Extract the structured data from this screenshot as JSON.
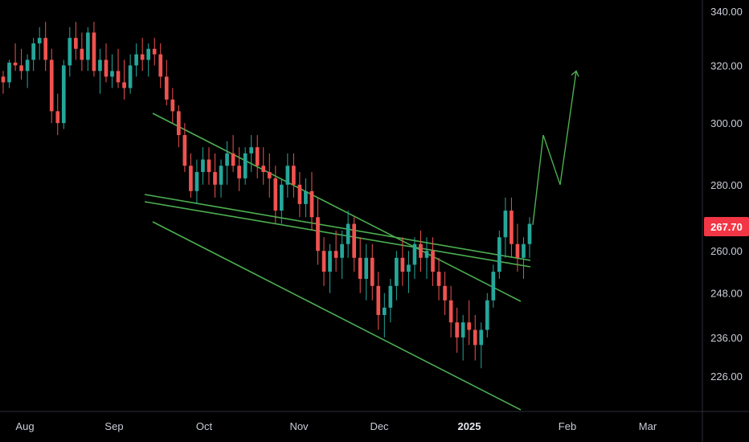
{
  "chart_data": {
    "type": "candlestick",
    "title": "",
    "price_axis": {
      "ticks": [
        "340.00",
        "320.00",
        "300.00",
        "280.00",
        "260.00",
        "248.00",
        "236.00",
        "226.00"
      ],
      "current_price_label": "267.70",
      "scale": "log"
    },
    "time_axis": {
      "ticks": [
        {
          "label": "Aug",
          "bold": false
        },
        {
          "label": "Sep",
          "bold": false
        },
        {
          "label": "Oct",
          "bold": false
        },
        {
          "label": "Nov",
          "bold": false
        },
        {
          "label": "Dec",
          "bold": false
        },
        {
          "label": "2025",
          "bold": true
        },
        {
          "label": "Feb",
          "bold": false
        },
        {
          "label": "Mar",
          "bold": false
        }
      ]
    },
    "colors": {
      "background": "#000000",
      "up": "#26a69a",
      "down": "#ef5350",
      "trendline": "#4caf50",
      "projection": "#4caf50",
      "price_badge": "#f23645",
      "axis_text": "#c9cdd6",
      "axis_line": "#2a2e39"
    },
    "candles_ohlc": [
      [
        316,
        318,
        310,
        314
      ],
      [
        314,
        322,
        312,
        321
      ],
      [
        321,
        328,
        318,
        320
      ],
      [
        320,
        326,
        315,
        318
      ],
      [
        318,
        324,
        312,
        322
      ],
      [
        322,
        330,
        318,
        328
      ],
      [
        328,
        334,
        322,
        330
      ],
      [
        330,
        336,
        318,
        322
      ],
      [
        322,
        326,
        300,
        304
      ],
      [
        304,
        310,
        296,
        300
      ],
      [
        300,
        322,
        298,
        320
      ],
      [
        320,
        334,
        316,
        330
      ],
      [
        330,
        336,
        322,
        326
      ],
      [
        326,
        332,
        318,
        322
      ],
      [
        322,
        334,
        318,
        332
      ],
      [
        332,
        336,
        316,
        318
      ],
      [
        318,
        326,
        310,
        322
      ],
      [
        322,
        328,
        314,
        316
      ],
      [
        316,
        324,
        312,
        318
      ],
      [
        318,
        326,
        312,
        314
      ],
      [
        314,
        322,
        308,
        312
      ],
      [
        312,
        324,
        310,
        320
      ],
      [
        320,
        328,
        316,
        324
      ],
      [
        324,
        330,
        318,
        322
      ],
      [
        322,
        328,
        316,
        326
      ],
      [
        326,
        330,
        320,
        324
      ],
      [
        324,
        328,
        312,
        316
      ],
      [
        316,
        322,
        306,
        308
      ],
      [
        308,
        312,
        300,
        304
      ],
      [
        304,
        306,
        292,
        296
      ],
      [
        296,
        300,
        284,
        286
      ],
      [
        286,
        290,
        276,
        278
      ],
      [
        278,
        288,
        274,
        284
      ],
      [
        284,
        292,
        280,
        288
      ],
      [
        288,
        292,
        280,
        284
      ],
      [
        284,
        290,
        276,
        280
      ],
      [
        280,
        288,
        276,
        286
      ],
      [
        286,
        294,
        280,
        290
      ],
      [
        290,
        296,
        284,
        286
      ],
      [
        286,
        292,
        278,
        282
      ],
      [
        282,
        292,
        280,
        290
      ],
      [
        290,
        296,
        284,
        292
      ],
      [
        292,
        296,
        282,
        286
      ],
      [
        286,
        292,
        280,
        284
      ],
      [
        284,
        290,
        276,
        282
      ],
      [
        282,
        286,
        268,
        272
      ],
      [
        272,
        282,
        268,
        280
      ],
      [
        280,
        290,
        276,
        286
      ],
      [
        286,
        290,
        276,
        280
      ],
      [
        280,
        284,
        270,
        274
      ],
      [
        274,
        282,
        270,
        278
      ],
      [
        278,
        284,
        266,
        270
      ],
      [
        270,
        276,
        256,
        260
      ],
      [
        260,
        264,
        250,
        254
      ],
      [
        254,
        262,
        248,
        260
      ],
      [
        260,
        266,
        254,
        258
      ],
      [
        258,
        266,
        252,
        262
      ],
      [
        262,
        272,
        258,
        268
      ],
      [
        268,
        270,
        254,
        258
      ],
      [
        258,
        264,
        248,
        252
      ],
      [
        252,
        262,
        246,
        258
      ],
      [
        258,
        262,
        246,
        250
      ],
      [
        250,
        254,
        238,
        242
      ],
      [
        242,
        248,
        236,
        244
      ],
      [
        244,
        252,
        240,
        250
      ],
      [
        250,
        260,
        246,
        258
      ],
      [
        258,
        264,
        250,
        254
      ],
      [
        254,
        260,
        248,
        256
      ],
      [
        256,
        264,
        252,
        262
      ],
      [
        262,
        266,
        254,
        258
      ],
      [
        258,
        264,
        252,
        260
      ],
      [
        260,
        264,
        250,
        254
      ],
      [
        254,
        258,
        246,
        250
      ],
      [
        250,
        254,
        242,
        246
      ],
      [
        246,
        250,
        236,
        240
      ],
      [
        240,
        244,
        232,
        236
      ],
      [
        236,
        242,
        230,
        240
      ],
      [
        240,
        246,
        234,
        238
      ],
      [
        238,
        242,
        230,
        234
      ],
      [
        234,
        240,
        228,
        238
      ],
      [
        238,
        248,
        236,
        246
      ],
      [
        246,
        256,
        244,
        254
      ],
      [
        254,
        266,
        252,
        264
      ],
      [
        264,
        276,
        258,
        272
      ],
      [
        272,
        276,
        258,
        262
      ],
      [
        262,
        268,
        254,
        258
      ],
      [
        258,
        264,
        252,
        262
      ],
      [
        262,
        270,
        258,
        268
      ]
    ],
    "projection": [
      267.7,
      296,
      280,
      318
    ],
    "trendlines_note": "falling channel with horizontal-ish resistance lines"
  }
}
